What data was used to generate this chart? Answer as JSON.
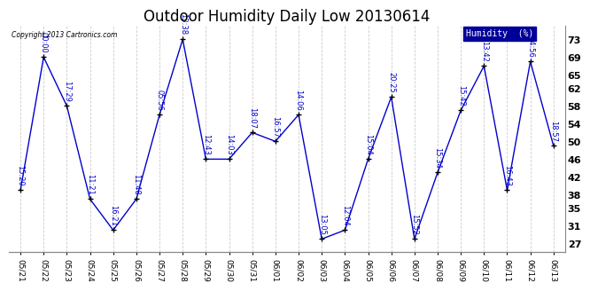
{
  "title": "Outdoor Humidity Daily Low 20130614",
  "copyright": "Copyright 2013 Cartronics.com",
  "legend_label": "Humidity  (%)",
  "x_labels": [
    "05/21",
    "05/22",
    "05/23",
    "05/24",
    "05/25",
    "05/26",
    "05/27",
    "05/28",
    "05/29",
    "05/30",
    "05/31",
    "06/01",
    "06/02",
    "06/03",
    "06/04",
    "06/05",
    "06/06",
    "06/07",
    "06/08",
    "06/09",
    "06/10",
    "06/11",
    "06/12",
    "06/13"
  ],
  "y_values": [
    39,
    69,
    58,
    37,
    30,
    37,
    56,
    73,
    46,
    46,
    52,
    50,
    56,
    28,
    30,
    46,
    60,
    28,
    43,
    57,
    67,
    39,
    68,
    49
  ],
  "point_labels": [
    "15:20",
    "00:00",
    "17:29",
    "11:21",
    "16:21",
    "11:48",
    "05:56",
    "13:38",
    "12:43",
    "14:03",
    "18:07",
    "16:57",
    "14:06",
    "13:05",
    "12:04",
    "15:04",
    "20:25",
    "15:52",
    "15:34",
    "15:42",
    "13:42",
    "16:43",
    "14:56",
    "18:57"
  ],
  "line_color": "#0000cc",
  "marker_color": "#000000",
  "label_color": "#0000cc",
  "background_color": "#ffffff",
  "grid_color": "#cccccc",
  "ylim": [
    25,
    76
  ],
  "yticks": [
    27,
    31,
    35,
    38,
    42,
    46,
    50,
    54,
    58,
    62,
    65,
    69,
    73
  ],
  "title_fontsize": 12,
  "legend_bg": "#000099",
  "legend_fg": "#ffffff"
}
